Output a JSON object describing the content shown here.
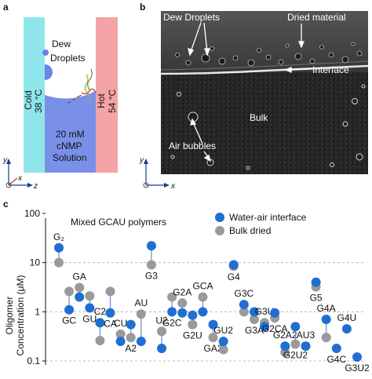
{
  "panel_a": {
    "letter": "a",
    "dew_line1": "Dew",
    "dew_line2": "Droplets",
    "cold_label": "Cold",
    "cold_temp": "38 °C",
    "hot_label": "Hot",
    "hot_temp": "54 °C",
    "sol_line1": "20 mM",
    "sol_line2": "cNMP",
    "sol_line3": "Solution",
    "axis_y": "y",
    "axis_z": "z",
    "axis_x": "x",
    "colors": {
      "cold": "#8fe6ea",
      "hot": "#f4a3a6",
      "solution": "#7a90e8",
      "droplet": "#6c83e5"
    }
  },
  "panel_b": {
    "letter": "b",
    "dew_droplets": "Dew Droplets",
    "dried_material": "Dried material",
    "interface": "Interface",
    "bulk": "Bulk",
    "air_bubbles": "Air bubbles",
    "axis_y": "y",
    "axis_x": "x"
  },
  "panel_c": {
    "letter": "c",
    "chart_data": {
      "type": "scatter",
      "title": "Mixed GCAU polymers",
      "ylabel_line1": "Oligomer",
      "ylabel_line2": "Concentration (μM)",
      "yscale": "log",
      "ylim": [
        0.1,
        100
      ],
      "yticks": [
        "0.1",
        "1",
        "10",
        "100"
      ],
      "grid": "dashed horizontal at 0.1, 1, 10",
      "legend_position": "top-right",
      "series": [
        {
          "name": "Water-air interface",
          "color": "#1f6fd1"
        },
        {
          "name": "Bulk dried",
          "color": "#9a9a9a"
        }
      ],
      "points": [
        {
          "label": "G₂",
          "interface": 20,
          "bulk": 10
        },
        {
          "label": "GC",
          "interface": 1.1,
          "bulk": 2.6
        },
        {
          "label": "GA",
          "interface": 2.0,
          "bulk": 3.1
        },
        {
          "label": "GU",
          "interface": 1.2,
          "bulk": 2.1
        },
        {
          "label": "C2",
          "interface": 0.6,
          "bulk": 0.26
        },
        {
          "label": "CA",
          "interface": 0.95,
          "bulk": 2.6
        },
        {
          "label": "CU",
          "interface": 0.25,
          "bulk": 0.35
        },
        {
          "label": "A2",
          "interface": 0.55,
          "bulk": 0.3
        },
        {
          "label": "AU",
          "interface": 0.25,
          "bulk": 0.9
        },
        {
          "label": "G3",
          "interface": 22,
          "bulk": 9
        },
        {
          "label": "U2",
          "interface": 0.18,
          "bulk": 0.4
        },
        {
          "label": "G2C",
          "interface": 1.0,
          "bulk": 2.0
        },
        {
          "label": "G2A",
          "interface": 0.95,
          "bulk": 1.5
        },
        {
          "label": "G2U",
          "interface": 0.85,
          "bulk": 0.55
        },
        {
          "label": "GCA",
          "interface": 1.0,
          "bulk": 2.0
        },
        {
          "label": "GA2",
          "interface": 0.55,
          "bulk": 0.3
        },
        {
          "label": "GU2",
          "interface": 0.25,
          "bulk": 0.17
        },
        {
          "label": "G4",
          "interface": 9,
          "bulk": 8.5
        },
        {
          "label": "G3C",
          "interface": 1.4,
          "bulk": 1.0
        },
        {
          "label": "G3A",
          "interface": 1.0,
          "bulk": 0.7
        },
        {
          "label": "G3U",
          "interface": 0.5,
          "bulk": 0.6
        },
        {
          "label": "G2CA",
          "interface": 0.95,
          "bulk": 0.75
        },
        {
          "label": "G2A2",
          "interface": 0.2,
          "bulk": 0.15
        },
        {
          "label": "G2U2",
          "interface": 0.5,
          "bulk": 0.22
        },
        {
          "label": "AU3",
          "interface": 0.2,
          "bulk": null
        },
        {
          "label": "G5",
          "interface": 4.0,
          "bulk": 3.2
        },
        {
          "label": "G4A",
          "interface": 0.7,
          "bulk": 0.3
        },
        {
          "label": "G4C",
          "interface": 0.18,
          "bulk": null
        },
        {
          "label": "G4U",
          "interface": 0.45,
          "bulk": null
        },
        {
          "label": "G3U2",
          "interface": 0.12,
          "bulk": null
        }
      ]
    }
  }
}
